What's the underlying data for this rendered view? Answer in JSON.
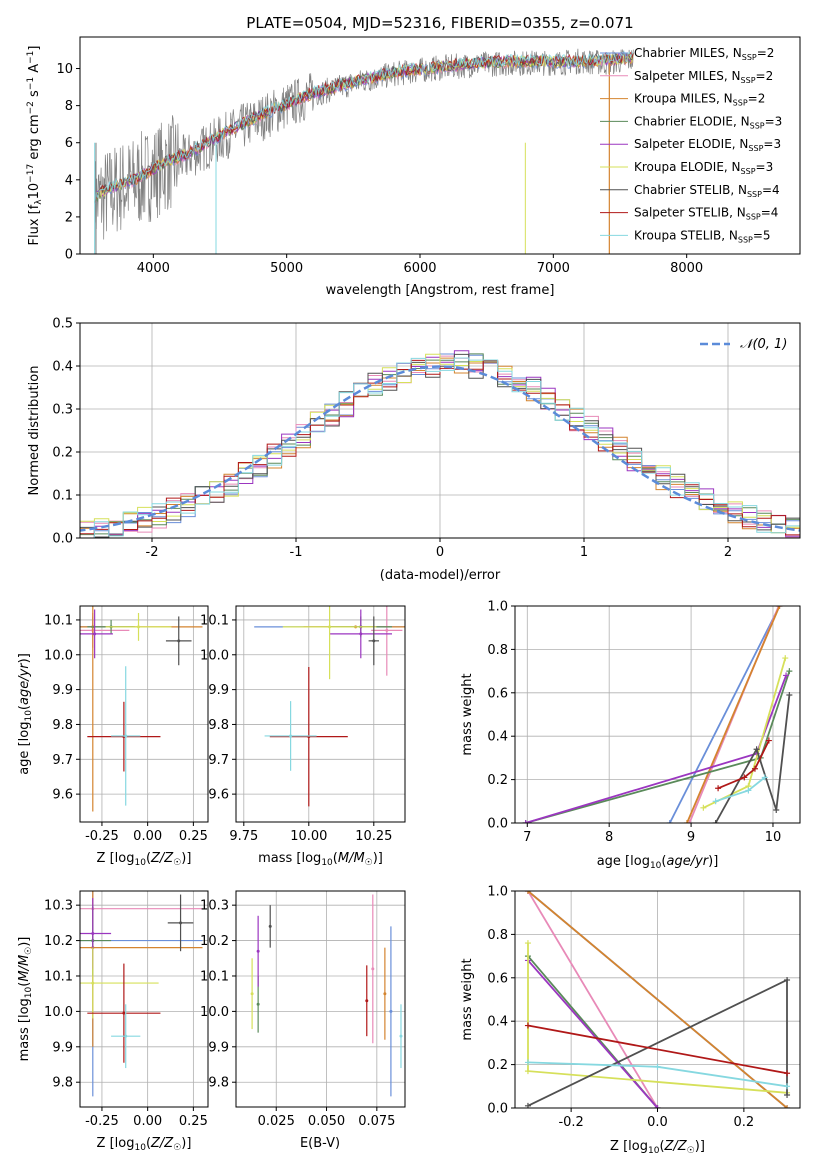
{
  "figure": {
    "title": "PLATE=0504, MJD=52316, FIBERID=0355, z=0.071",
    "legend_models": [
      {
        "label": "Chabrier MILES, N",
        "n": "=2",
        "color": "#6a8fd9"
      },
      {
        "label": "Salpeter MILES, N",
        "n": "=2",
        "color": "#e88ab8"
      },
      {
        "label": "Kroupa MILES, N",
        "n": "=2",
        "color": "#d4842f"
      },
      {
        "label": "Chabrier ELODIE, N",
        "n": "=3",
        "color": "#5a8a5a"
      },
      {
        "label": "Salpeter ELODIE, N",
        "n": "=3",
        "color": "#9b36c0"
      },
      {
        "label": "Kroupa ELODIE, N",
        "n": "=3",
        "color": "#d6e05a"
      },
      {
        "label": "Chabrier STELIB, N",
        "n": "=4",
        "color": "#505050"
      },
      {
        "label": "Salpeter STELIB, N",
        "n": "=4",
        "color": "#b01818"
      },
      {
        "label": "Kroupa STELIB, N",
        "n": "=5",
        "color": "#86d8e0"
      }
    ],
    "legend_sub": "SSP"
  },
  "chart_data": [
    {
      "id": "spectrum",
      "type": "line",
      "xlabel": "wavelength [Angstrom, rest frame]",
      "ylabel": "Flux [f10 erg cm s A]",
      "xlim": [
        3450,
        8850
      ],
      "ylim": [
        0,
        11.7
      ],
      "xticks": [
        4000,
        5000,
        6000,
        7000,
        8000
      ],
      "yticks": [
        0,
        2,
        4,
        6,
        8,
        10
      ],
      "grid": false,
      "legend": "upper right",
      "data_color": "#808080",
      "data_continuum": [
        [
          3560,
          2.8
        ],
        [
          3650,
          3.2
        ],
        [
          3750,
          3.6
        ],
        [
          3850,
          3.8
        ],
        [
          3950,
          4.2
        ],
        [
          4100,
          4.8
        ],
        [
          4250,
          5.2
        ],
        [
          4400,
          5.8
        ],
        [
          4600,
          6.6
        ],
        [
          4800,
          7.3
        ],
        [
          5000,
          8.0
        ],
        [
          5200,
          8.6
        ],
        [
          5500,
          9.2
        ],
        [
          5800,
          9.7
        ],
        [
          6100,
          10.0
        ],
        [
          6400,
          10.2
        ],
        [
          6700,
          10.3
        ],
        [
          7000,
          10.3
        ],
        [
          7200,
          10.4
        ],
        [
          7400,
          10.3
        ],
        [
          7600,
          10.5
        ]
      ],
      "model_continuum": [
        [
          3560,
          3.0
        ],
        [
          3650,
          3.4
        ],
        [
          3750,
          3.7
        ],
        [
          3850,
          3.9
        ],
        [
          3950,
          4.3
        ],
        [
          4100,
          4.9
        ],
        [
          4250,
          5.3
        ],
        [
          4400,
          5.9
        ],
        [
          4600,
          6.7
        ],
        [
          4800,
          7.4
        ],
        [
          5000,
          8.0
        ],
        [
          5200,
          8.6
        ],
        [
          5500,
          9.2
        ],
        [
          5800,
          9.7
        ],
        [
          6100,
          9.95
        ],
        [
          6400,
          10.2
        ],
        [
          6700,
          10.3
        ],
        [
          7000,
          10.3
        ],
        [
          7200,
          10.3
        ],
        [
          7400,
          10.4
        ],
        [
          7600,
          10.5
        ]
      ],
      "model_start": 3560,
      "model_end": 7600
    },
    {
      "id": "residuals",
      "type": "histogram",
      "xlabel": "(data-model)/error",
      "ylabel": "Normed distribution",
      "xlim": [
        -2.5,
        2.5
      ],
      "ylim": [
        0,
        0.5
      ],
      "xticks": [
        -2,
        -1,
        0,
        1,
        2
      ],
      "yticks": [
        0.0,
        0.1,
        0.2,
        0.3,
        0.4,
        0.5
      ],
      "grid": true,
      "legend_label": "N(0,1)",
      "legend": "upper right",
      "gaussian_color": "#5b8bd9",
      "bin_width": 0.1
    },
    {
      "id": "age-vs-Z",
      "type": "errorbar",
      "xlabel": "Z [log10(Z/Z☉)]",
      "ylabel": "age [log10(age/yr)]",
      "xlim": [
        -0.37,
        0.33
      ],
      "ylim": [
        9.52,
        10.14
      ],
      "xticks": [
        -0.25,
        0.0,
        0.25
      ],
      "yticks": [
        9.6,
        9.7,
        9.8,
        9.9,
        10.0,
        10.1
      ],
      "grid": true,
      "points": [
        {
          "model": 0,
          "x": -0.3,
          "xerr": 0.22,
          "y": 10.08,
          "yerr": 0.03
        },
        {
          "model": 1,
          "x": -0.3,
          "xerr": 0.2,
          "y": 10.07,
          "yerr": 0.05
        },
        {
          "model": 2,
          "x": -0.3,
          "xerr": 0.6,
          "y": 10.08,
          "yerr": 0.53
        },
        {
          "model": 3,
          "x": -0.2,
          "xerr": 0.13,
          "y": 10.08,
          "yerr": 0.02
        },
        {
          "model": 4,
          "x": -0.29,
          "xerr": 0.1,
          "y": 10.06,
          "yerr": 0.07
        },
        {
          "model": 5,
          "x": -0.05,
          "xerr": 0.18,
          "y": 10.08,
          "yerr": 0.04
        },
        {
          "model": 6,
          "x": 0.17,
          "xerr": 0.07,
          "y": 10.04,
          "yerr": 0.07
        },
        {
          "model": 7,
          "x": -0.13,
          "xerr": 0.2,
          "y": 9.765,
          "yerr": 0.1
        },
        {
          "model": 8,
          "x": -0.12,
          "xerr": 0.08,
          "y": 9.767,
          "yerr": 0.2
        }
      ]
    },
    {
      "id": "age-vs-mass",
      "type": "errorbar",
      "xlabel": "mass [log10(M/M☉)]",
      "ylabel": "",
      "xlim": [
        9.72,
        10.37
      ],
      "ylim": [
        9.52,
        10.14
      ],
      "xticks": [
        9.75,
        10.0,
        10.25
      ],
      "yticks": [
        9.6,
        9.7,
        9.8,
        9.9,
        10.0,
        10.1
      ],
      "grid": true,
      "points": [
        {
          "model": 0,
          "x": 10.2,
          "xerr": 0.41,
          "y": 10.08,
          "yerr": 0.0
        },
        {
          "model": 1,
          "x": 10.3,
          "xerr": 0.06,
          "y": 10.07,
          "yerr": 0.13
        },
        {
          "model": 2,
          "x": 10.18,
          "xerr": 0.2,
          "y": 10.08,
          "yerr": 0.0
        },
        {
          "model": 3,
          "x": 10.2,
          "xerr": 0.12,
          "y": 10.08,
          "yerr": 0.03
        },
        {
          "model": 4,
          "x": 10.2,
          "xerr": 0.12,
          "y": 10.06,
          "yerr": 0.07
        },
        {
          "model": 5,
          "x": 10.08,
          "xerr": 0.18,
          "y": 10.08,
          "yerr": 0.15
        },
        {
          "model": 6,
          "x": 10.25,
          "xerr": 0.02,
          "y": 10.04,
          "yerr": 0.07
        },
        {
          "model": 7,
          "x": 10.0,
          "xerr": 0.15,
          "y": 9.765,
          "yerr": 0.2
        },
        {
          "model": 8,
          "x": 9.93,
          "xerr": 0.1,
          "y": 9.767,
          "yerr": 0.1
        }
      ]
    },
    {
      "id": "weight-vs-age",
      "type": "line",
      "xlabel": "age [log10(age/yr)]",
      "ylabel": "mass weight",
      "xlim": [
        6.85,
        10.33
      ],
      "ylim": [
        0,
        1.0
      ],
      "xticks": [
        7,
        8,
        9,
        10
      ],
      "yticks": [
        0.0,
        0.2,
        0.4,
        0.6,
        0.8,
        1.0
      ],
      "grid": true,
      "series": [
        {
          "model": 0,
          "x": [
            8.74,
            10.08
          ],
          "y": [
            0.0,
            1.0
          ]
        },
        {
          "model": 1,
          "x": [
            8.98,
            10.07
          ],
          "y": [
            0.0,
            1.0
          ]
        },
        {
          "model": 2,
          "x": [
            8.95,
            10.08
          ],
          "y": [
            0.0,
            1.0
          ]
        },
        {
          "model": 3,
          "x": [
            6.98,
            9.85,
            10.2
          ],
          "y": [
            0.0,
            0.3,
            0.7
          ]
        },
        {
          "model": 4,
          "x": [
            6.98,
            9.8,
            10.16
          ],
          "y": [
            0.0,
            0.32,
            0.68
          ]
        },
        {
          "model": 5,
          "x": [
            9.15,
            9.7,
            10.15
          ],
          "y": [
            0.07,
            0.17,
            0.76
          ]
        },
        {
          "model": 6,
          "x": [
            9.3,
            9.8,
            10.04,
            10.2
          ],
          "y": [
            0.0,
            0.34,
            0.06,
            0.59
          ]
        },
        {
          "model": 7,
          "x": [
            9.33,
            9.65,
            9.78,
            9.95
          ],
          "y": [
            0.16,
            0.21,
            0.25,
            0.38
          ]
        },
        {
          "model": 8,
          "x": [
            9.3,
            9.7,
            9.9
          ],
          "y": [
            0.1,
            0.15,
            0.21
          ]
        }
      ]
    },
    {
      "id": "mass-vs-Z",
      "type": "errorbar",
      "xlabel": "Z [log10(Z/Z☉)]",
      "ylabel": "mass [log10(M/M☉)]",
      "xlim": [
        -0.37,
        0.33
      ],
      "ylim": [
        9.73,
        10.34
      ],
      "xticks": [
        -0.25,
        0.0,
        0.25
      ],
      "yticks": [
        9.8,
        9.9,
        10.0,
        10.1,
        10.2,
        10.3
      ],
      "grid": true,
      "points": [
        {
          "model": 0,
          "x": -0.3,
          "xerr": 0.6,
          "y": 10.2,
          "yerr": 0.44
        },
        {
          "model": 1,
          "x": -0.3,
          "xerr": 0.6,
          "y": 10.29,
          "yerr": 0.04
        },
        {
          "model": 2,
          "x": -0.3,
          "xerr": 0.6,
          "y": 10.18,
          "yerr": 0.28
        },
        {
          "model": 3,
          "x": -0.3,
          "xerr": 0.1,
          "y": 10.2,
          "yerr": 0.1
        },
        {
          "model": 4,
          "x": -0.3,
          "xerr": 0.1,
          "y": 10.22,
          "yerr": 0.1
        },
        {
          "model": 5,
          "x": -0.3,
          "xerr": 0.36,
          "y": 10.08,
          "yerr": 0.1
        },
        {
          "model": 6,
          "x": 0.18,
          "xerr": 0.07,
          "y": 10.25,
          "yerr": 0.08
        },
        {
          "model": 7,
          "x": -0.13,
          "xerr": 0.2,
          "y": 9.995,
          "yerr": 0.14
        },
        {
          "model": 8,
          "x": -0.12,
          "xerr": 0.08,
          "y": 9.93,
          "yerr": 0.09
        }
      ]
    },
    {
      "id": "mass-vs-EBV",
      "type": "errorbar",
      "xlabel": "E(B-V)",
      "ylabel": "",
      "xlim": [
        0.005,
        0.089
      ],
      "ylim": [
        9.73,
        10.34
      ],
      "xticks": [
        0.025,
        0.05,
        0.075
      ],
      "yticks": [
        9.8,
        9.9,
        10.0,
        10.1,
        10.2,
        10.3
      ],
      "grid": true,
      "points": [
        {
          "model": 0,
          "x": 0.082,
          "xerr": 0.0,
          "y": 10.0,
          "yerr": 0.24
        },
        {
          "model": 1,
          "x": 0.073,
          "xerr": 0.0,
          "y": 10.12,
          "yerr": 0.21
        },
        {
          "model": 2,
          "x": 0.079,
          "xerr": 0.0,
          "y": 10.05,
          "yerr": 0.13
        },
        {
          "model": 3,
          "x": 0.016,
          "xerr": 0.0,
          "y": 10.02,
          "yerr": 0.08
        },
        {
          "model": 4,
          "x": 0.016,
          "xerr": 0.0,
          "y": 10.17,
          "yerr": 0.1
        },
        {
          "model": 5,
          "x": 0.013,
          "xerr": 0.0,
          "y": 10.05,
          "yerr": 0.1
        },
        {
          "model": 6,
          "x": 0.022,
          "xerr": 0.0,
          "y": 10.24,
          "yerr": 0.06
        },
        {
          "model": 7,
          "x": 0.07,
          "xerr": 0.0,
          "y": 10.03,
          "yerr": 0.1
        },
        {
          "model": 8,
          "x": 0.087,
          "xerr": 0.0,
          "y": 9.93,
          "yerr": 0.09
        }
      ]
    },
    {
      "id": "weight-vs-Z",
      "type": "line",
      "xlabel": "Z [log10(Z/Z☉)]",
      "ylabel": "mass weight",
      "xlim": [
        -0.33,
        0.33
      ],
      "ylim": [
        0,
        1.0
      ],
      "xticks": [
        -0.2,
        0.0,
        0.2
      ],
      "yticks": [
        0.0,
        0.2,
        0.4,
        0.6,
        0.8,
        1.0
      ],
      "grid": true,
      "series": [
        {
          "model": 0,
          "x": [
            -0.3,
            0.3
          ],
          "y": [
            1.0,
            0.0
          ]
        },
        {
          "model": 1,
          "x": [
            -0.3,
            0.0
          ],
          "y": [
            1.0,
            0.0
          ]
        },
        {
          "model": 2,
          "x": [
            -0.3,
            0.3
          ],
          "y": [
            1.0,
            0.0
          ]
        },
        {
          "model": 3,
          "x": [
            -0.3,
            0.0
          ],
          "y": [
            0.7,
            0.0
          ]
        },
        {
          "model": 4,
          "x": [
            -0.3,
            0.0
          ],
          "y": [
            0.68,
            0.0
          ]
        },
        {
          "model": 5,
          "x": [
            -0.3,
            -0.3,
            0.3
          ],
          "y": [
            0.76,
            0.17,
            0.07
          ]
        },
        {
          "model": 6,
          "x": [
            -0.3,
            0.3,
            0.3
          ],
          "y": [
            0.01,
            0.59,
            0.06
          ]
        },
        {
          "model": 7,
          "x": [
            -0.3,
            0.3
          ],
          "y": [
            0.38,
            0.16
          ]
        },
        {
          "model": 8,
          "x": [
            -0.3,
            0.0,
            0.3
          ],
          "y": [
            0.21,
            0.19,
            0.1
          ]
        }
      ]
    }
  ]
}
